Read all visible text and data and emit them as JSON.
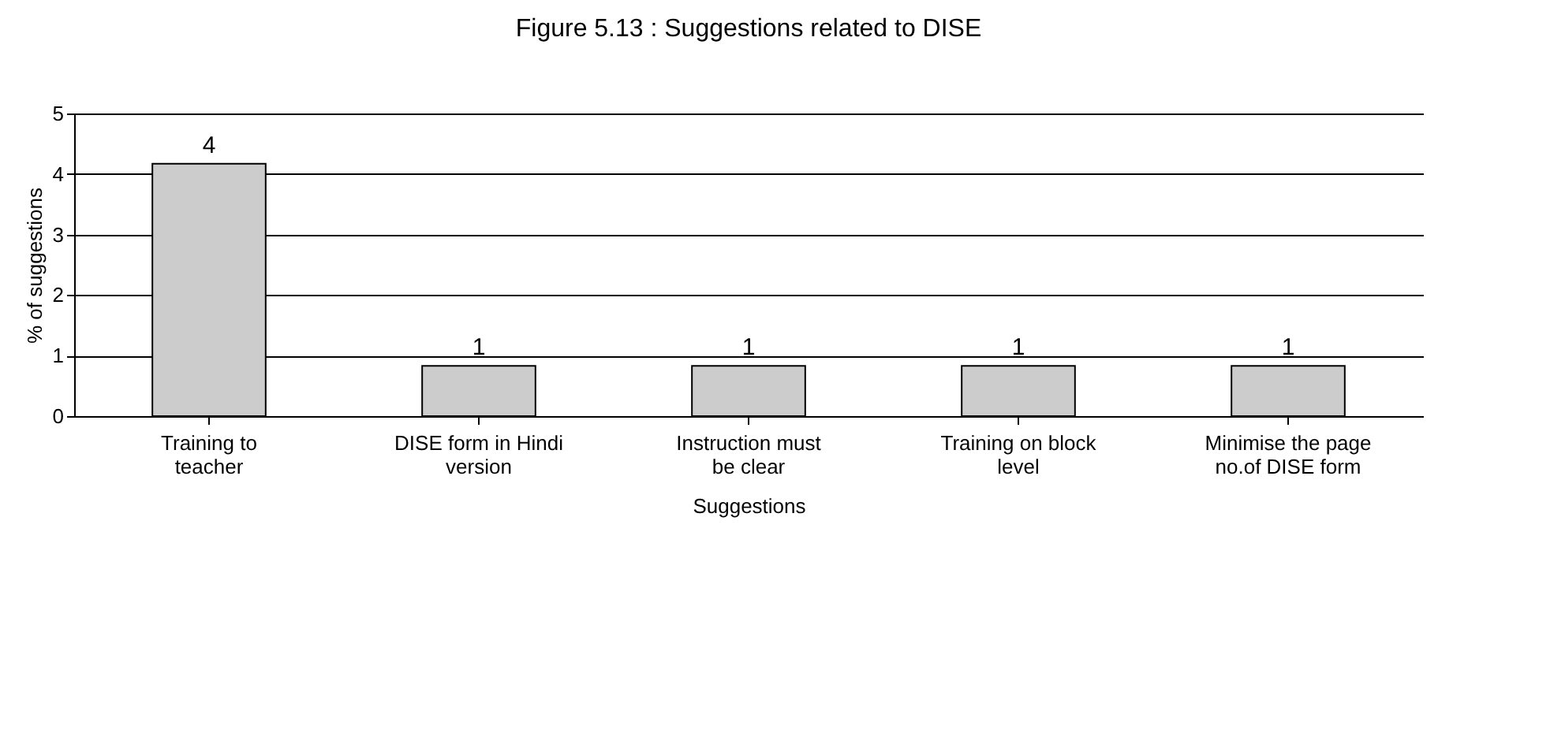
{
  "chart_data": {
    "type": "bar",
    "title": "Figure 5.13 : Suggestions related to DISE",
    "xlabel": "Suggestions",
    "ylabel": "% of suggestions",
    "categories": [
      "Training to teacher",
      "DISE form in Hindi version",
      "Instruction must be clear",
      "Training on block level",
      "Minimise the page no.of DISE form"
    ],
    "values": [
      4.17,
      0.83,
      0.83,
      0.83,
      0.83
    ],
    "value_labels": [
      "4",
      "1",
      "1",
      "1",
      "1"
    ],
    "color": "#cccccc",
    "ylim": [
      0,
      5
    ],
    "yticks": [
      0,
      1,
      2,
      3,
      4,
      5
    ],
    "grid": "y"
  }
}
